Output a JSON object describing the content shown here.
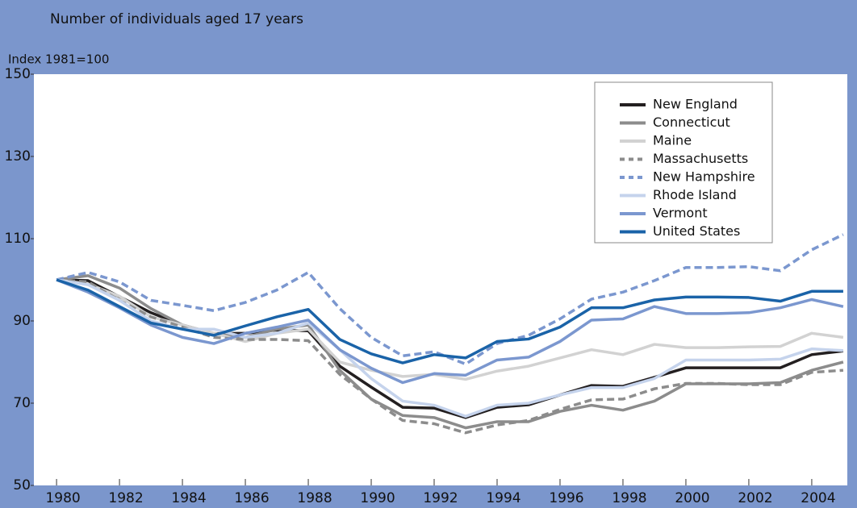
{
  "chart_data": {
    "type": "line",
    "title": "Number of individuals aged 17 years",
    "y_label": "Index 1981=100",
    "x": [
      1980,
      1981,
      1982,
      1983,
      1984,
      1985,
      1986,
      1987,
      1988,
      1989,
      1990,
      1991,
      1992,
      1993,
      1994,
      1995,
      1996,
      1997,
      1998,
      1999,
      2000,
      2001,
      2002,
      2003,
      2004,
      2005
    ],
    "xlim": [
      1979.28,
      2005.13
    ],
    "xticks": [
      1980,
      1982,
      1984,
      1986,
      1988,
      1990,
      1992,
      1994,
      1996,
      1998,
      2000,
      2002,
      2004
    ],
    "ylim": [
      50,
      150
    ],
    "yticks": [
      50,
      70,
      90,
      110,
      130,
      150
    ],
    "legend": "top-right",
    "series": [
      {
        "name": "New England",
        "color": "#231f20",
        "style": "solid",
        "values": [
          100,
          99.8,
          95.9,
          92,
          89,
          86.9,
          87,
          87.8,
          87.6,
          79,
          73.9,
          69,
          68.8,
          66.5,
          69,
          69.6,
          72,
          74.3,
          74.1,
          76.3,
          78.6,
          78.6,
          78.6,
          78.6,
          81.8,
          82.7
        ]
      },
      {
        "name": "Connecticut",
        "color": "#8c8c8c",
        "style": "solid",
        "values": [
          100,
          101,
          98,
          93,
          89,
          87,
          86,
          88,
          89,
          78,
          71,
          67,
          66.5,
          64,
          65.5,
          65.5,
          68,
          69.5,
          68.3,
          70.5,
          74.7,
          74.7,
          74.7,
          75,
          78,
          80
        ]
      },
      {
        "name": "Maine",
        "color": "#d2d2d2",
        "style": "solid",
        "values": [
          100,
          99,
          96,
          91,
          89,
          87,
          85,
          87,
          88,
          80,
          78,
          76.5,
          77,
          75.8,
          77.8,
          79,
          81,
          83,
          81.8,
          84.3,
          83.5,
          83.5,
          83.7,
          83.8,
          87,
          86
        ]
      },
      {
        "name": "Massachusetts",
        "color": "#8c8c8c",
        "style": "dashed",
        "values": [
          100,
          99.5,
          95,
          91,
          88.5,
          86,
          85.5,
          85.5,
          85.2,
          77,
          71,
          65.8,
          65,
          62.8,
          64.7,
          65.8,
          68.5,
          70.8,
          71,
          73.5,
          74.8,
          74.8,
          74.5,
          74.5,
          77.5,
          78
        ]
      },
      {
        "name": "New Hampshire",
        "color": "#7b97cf",
        "style": "dashed",
        "values": [
          100,
          101.8,
          99.5,
          95,
          93.8,
          92.5,
          94.5,
          97.5,
          101.8,
          93,
          86,
          81.5,
          82.5,
          79.5,
          84.5,
          86.5,
          90.5,
          95.3,
          97,
          99.8,
          103,
          103,
          103.2,
          102.2,
          107.3,
          111
        ]
      },
      {
        "name": "Rhode Island",
        "color": "#c5d3ec",
        "style": "solid",
        "values": [
          100,
          98.8,
          95,
          90,
          88,
          88,
          86,
          87,
          89.5,
          83,
          76,
          70.5,
          69.5,
          66.8,
          69.5,
          70,
          72,
          73.8,
          73.8,
          76,
          80.5,
          80.5,
          80.5,
          80.7,
          83.2,
          82.8
        ]
      },
      {
        "name": "Vermont",
        "color": "#7b97cf",
        "style": "solid",
        "values": [
          100,
          97,
          93.2,
          89,
          86,
          84.5,
          87,
          88.5,
          90.2,
          83,
          78.5,
          75,
          77.2,
          76.8,
          80.5,
          81.2,
          85,
          90.2,
          90.5,
          93.5,
          91.8,
          91.8,
          92,
          93.2,
          95.2,
          93.5
        ]
      },
      {
        "name": "United States",
        "color": "#1a63a8",
        "style": "solid",
        "values": [
          100,
          97.5,
          93.5,
          89.5,
          88,
          86.5,
          88.8,
          91,
          92.8,
          85.5,
          82,
          79.8,
          81.8,
          81,
          85,
          85.6,
          88.5,
          93.2,
          93.2,
          95.1,
          95.8,
          95.8,
          95.7,
          94.8,
          97.2,
          97.2
        ]
      }
    ]
  }
}
